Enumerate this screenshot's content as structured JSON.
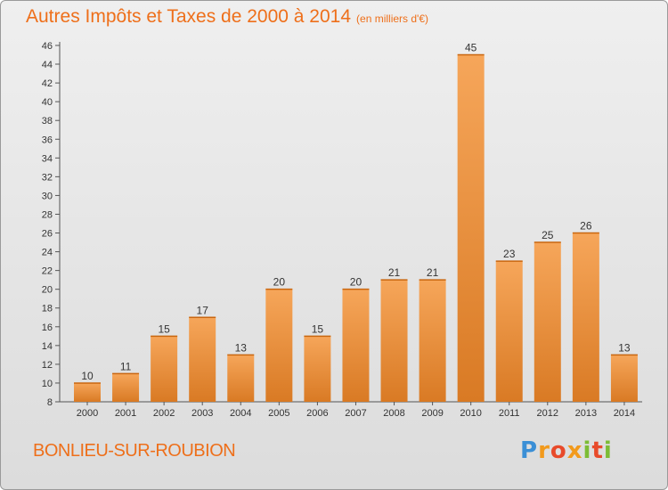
{
  "header": {
    "title": "Autres Impôts et Taxes de 2000 à 2014",
    "unit": "(en milliers d'€)"
  },
  "footer": {
    "commune": "BONLIEU-SUR-ROUBION",
    "logo_text": "Proxiti"
  },
  "colors": {
    "accent": "#ee6f1a",
    "bar_light": "#f6a65a",
    "bar_dark": "#d97a24"
  },
  "chart_data": {
    "type": "bar",
    "categories": [
      "2000",
      "2001",
      "2002",
      "2003",
      "2004",
      "2005",
      "2006",
      "2007",
      "2008",
      "2009",
      "2010",
      "2011",
      "2012",
      "2013",
      "2014"
    ],
    "values": [
      10,
      11,
      15,
      17,
      13,
      20,
      15,
      20,
      21,
      21,
      45,
      23,
      25,
      26,
      13
    ],
    "title": "Autres Impôts et Taxes de 2000 à 2014",
    "subtitle": "(en milliers d'€)",
    "xlabel": "",
    "ylabel": "",
    "ylim": [
      8,
      46
    ],
    "yticks": [
      8,
      10,
      12,
      14,
      16,
      18,
      20,
      22,
      24,
      26,
      28,
      30,
      32,
      34,
      36,
      38,
      40,
      42,
      44,
      46
    ],
    "grid": false,
    "legend": "none"
  }
}
